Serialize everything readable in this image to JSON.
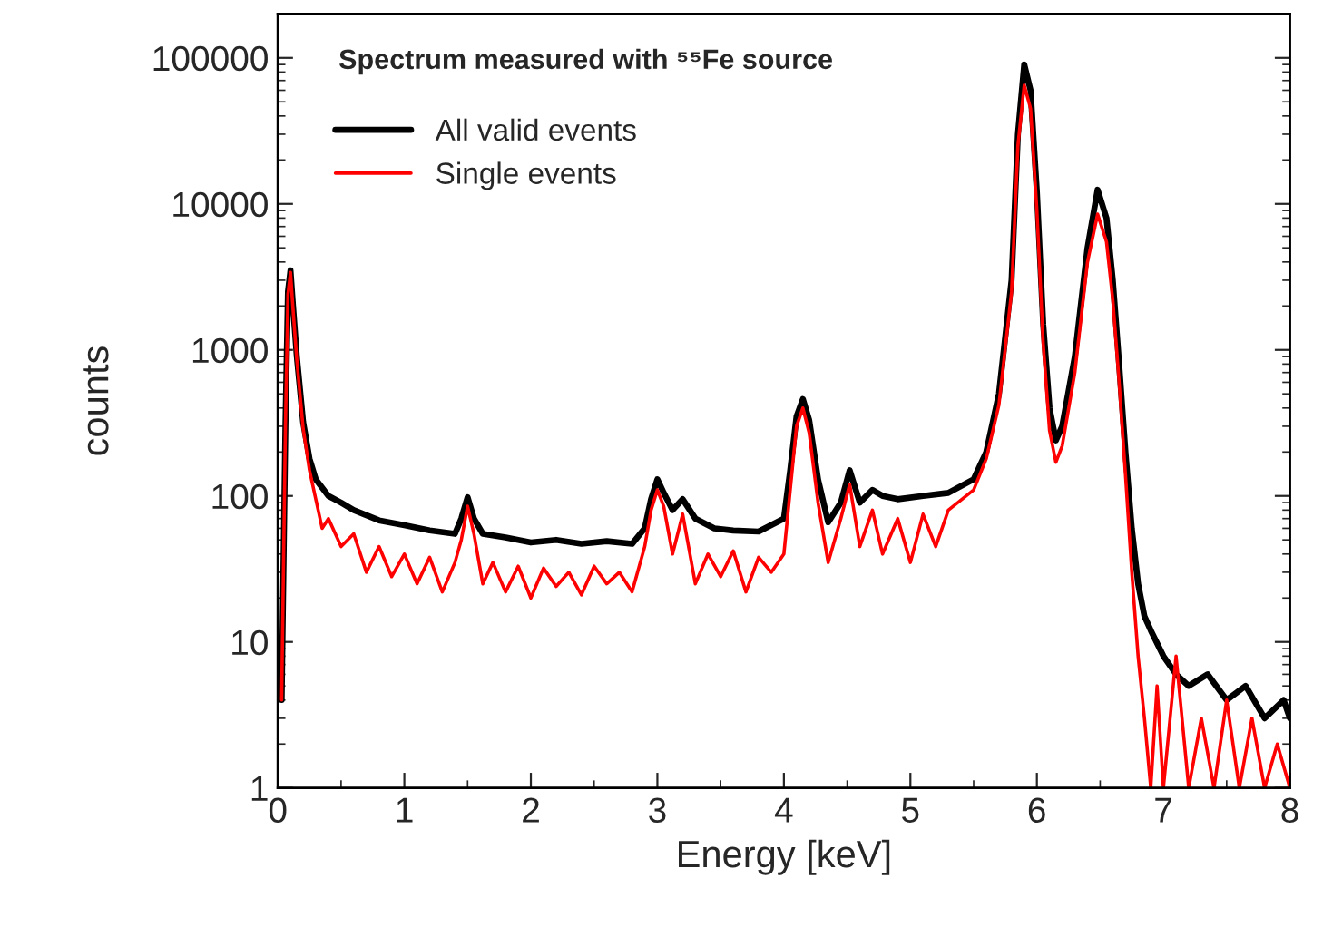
{
  "chart_data": {
    "type": "line",
    "xlabel": "Energy [keV]",
    "ylabel": "counts",
    "annotations": [
      "Spectrum measured with ⁵⁵Fe source"
    ],
    "log": "y",
    "xlim": [
      0,
      8
    ],
    "xticks": [
      0,
      1,
      2,
      3,
      4,
      5,
      6,
      7,
      8
    ],
    "ylim": [
      1,
      200000
    ],
    "yticks": [
      1,
      10,
      100,
      1000,
      10000,
      100000
    ],
    "grid": false,
    "legend": "top left",
    "marker": "none",
    "line_style": "solid",
    "series": [
      {
        "name": "All valid events",
        "color": "#000000",
        "x": [
          0.03,
          0.06,
          0.08,
          0.1,
          0.12,
          0.15,
          0.2,
          0.25,
          0.3,
          0.4,
          0.5,
          0.6,
          0.8,
          1.0,
          1.2,
          1.4,
          1.45,
          1.5,
          1.55,
          1.62,
          1.8,
          2.0,
          2.2,
          2.4,
          2.6,
          2.8,
          2.9,
          2.95,
          3.0,
          3.05,
          3.12,
          3.2,
          3.3,
          3.45,
          3.6,
          3.8,
          4.0,
          4.05,
          4.1,
          4.15,
          4.2,
          4.27,
          4.35,
          4.45,
          4.52,
          4.6,
          4.7,
          4.78,
          4.9,
          5.1,
          5.3,
          5.5,
          5.6,
          5.7,
          5.8,
          5.85,
          5.9,
          5.95,
          6.0,
          6.05,
          6.1,
          6.15,
          6.2,
          6.3,
          6.4,
          6.48,
          6.55,
          6.6,
          6.65,
          6.7,
          6.75,
          6.8,
          6.85,
          6.9,
          7.0,
          7.1,
          7.2,
          7.35,
          7.5,
          7.65,
          7.8,
          7.95,
          8.0
        ],
        "values": [
          4,
          300,
          2500,
          3500,
          2000,
          900,
          320,
          180,
          130,
          100,
          90,
          80,
          68,
          63,
          58,
          55,
          70,
          98,
          70,
          55,
          52,
          48,
          50,
          47,
          49,
          47,
          60,
          95,
          130,
          105,
          80,
          95,
          70,
          60,
          58,
          57,
          70,
          150,
          350,
          460,
          330,
          130,
          66,
          90,
          150,
          90,
          110,
          100,
          95,
          100,
          105,
          130,
          200,
          500,
          3000,
          30000,
          90000,
          60000,
          12000,
          1500,
          400,
          240,
          300,
          900,
          5000,
          12500,
          8000,
          3000,
          800,
          200,
          60,
          25,
          15,
          12,
          8,
          6,
          5,
          6,
          4,
          5,
          3,
          4,
          3
        ]
      },
      {
        "name": "Single events",
        "color": "#ff0000",
        "x": [
          0.03,
          0.06,
          0.08,
          0.1,
          0.12,
          0.15,
          0.2,
          0.25,
          0.3,
          0.35,
          0.4,
          0.5,
          0.6,
          0.7,
          0.8,
          0.9,
          1.0,
          1.1,
          1.2,
          1.3,
          1.4,
          1.45,
          1.5,
          1.55,
          1.62,
          1.7,
          1.8,
          1.9,
          2.0,
          2.1,
          2.2,
          2.3,
          2.4,
          2.5,
          2.6,
          2.7,
          2.8,
          2.9,
          2.95,
          3.0,
          3.05,
          3.12,
          3.2,
          3.3,
          3.4,
          3.5,
          3.6,
          3.7,
          3.8,
          3.9,
          4.0,
          4.05,
          4.1,
          4.15,
          4.2,
          4.27,
          4.35,
          4.45,
          4.52,
          4.6,
          4.7,
          4.78,
          4.9,
          5.0,
          5.1,
          5.2,
          5.3,
          5.5,
          5.6,
          5.7,
          5.8,
          5.85,
          5.9,
          5.95,
          6.0,
          6.05,
          6.1,
          6.15,
          6.2,
          6.3,
          6.4,
          6.48,
          6.55,
          6.6,
          6.65,
          6.7,
          6.75,
          6.8,
          6.85,
          6.9,
          6.95,
          7.0,
          7.1,
          7.2,
          7.3,
          7.4,
          7.5,
          7.6,
          7.7,
          7.8,
          7.9,
          8.0
        ],
        "values": [
          4,
          300,
          2400,
          3400,
          1900,
          850,
          290,
          150,
          95,
          60,
          70,
          45,
          55,
          30,
          45,
          28,
          40,
          25,
          38,
          22,
          35,
          50,
          85,
          55,
          25,
          35,
          22,
          33,
          20,
          32,
          24,
          30,
          21,
          33,
          25,
          30,
          22,
          45,
          80,
          110,
          85,
          40,
          75,
          25,
          40,
          28,
          42,
          22,
          38,
          30,
          40,
          110,
          300,
          400,
          270,
          90,
          35,
          70,
          120,
          45,
          80,
          40,
          70,
          35,
          75,
          45,
          80,
          110,
          180,
          420,
          2500,
          25000,
          65000,
          45000,
          9000,
          1100,
          280,
          170,
          220,
          700,
          4000,
          8500,
          5500,
          2200,
          600,
          140,
          30,
          8,
          3,
          1,
          5,
          1,
          8,
          1,
          3,
          1,
          4,
          1,
          3,
          1,
          2,
          1
        ]
      }
    ]
  }
}
